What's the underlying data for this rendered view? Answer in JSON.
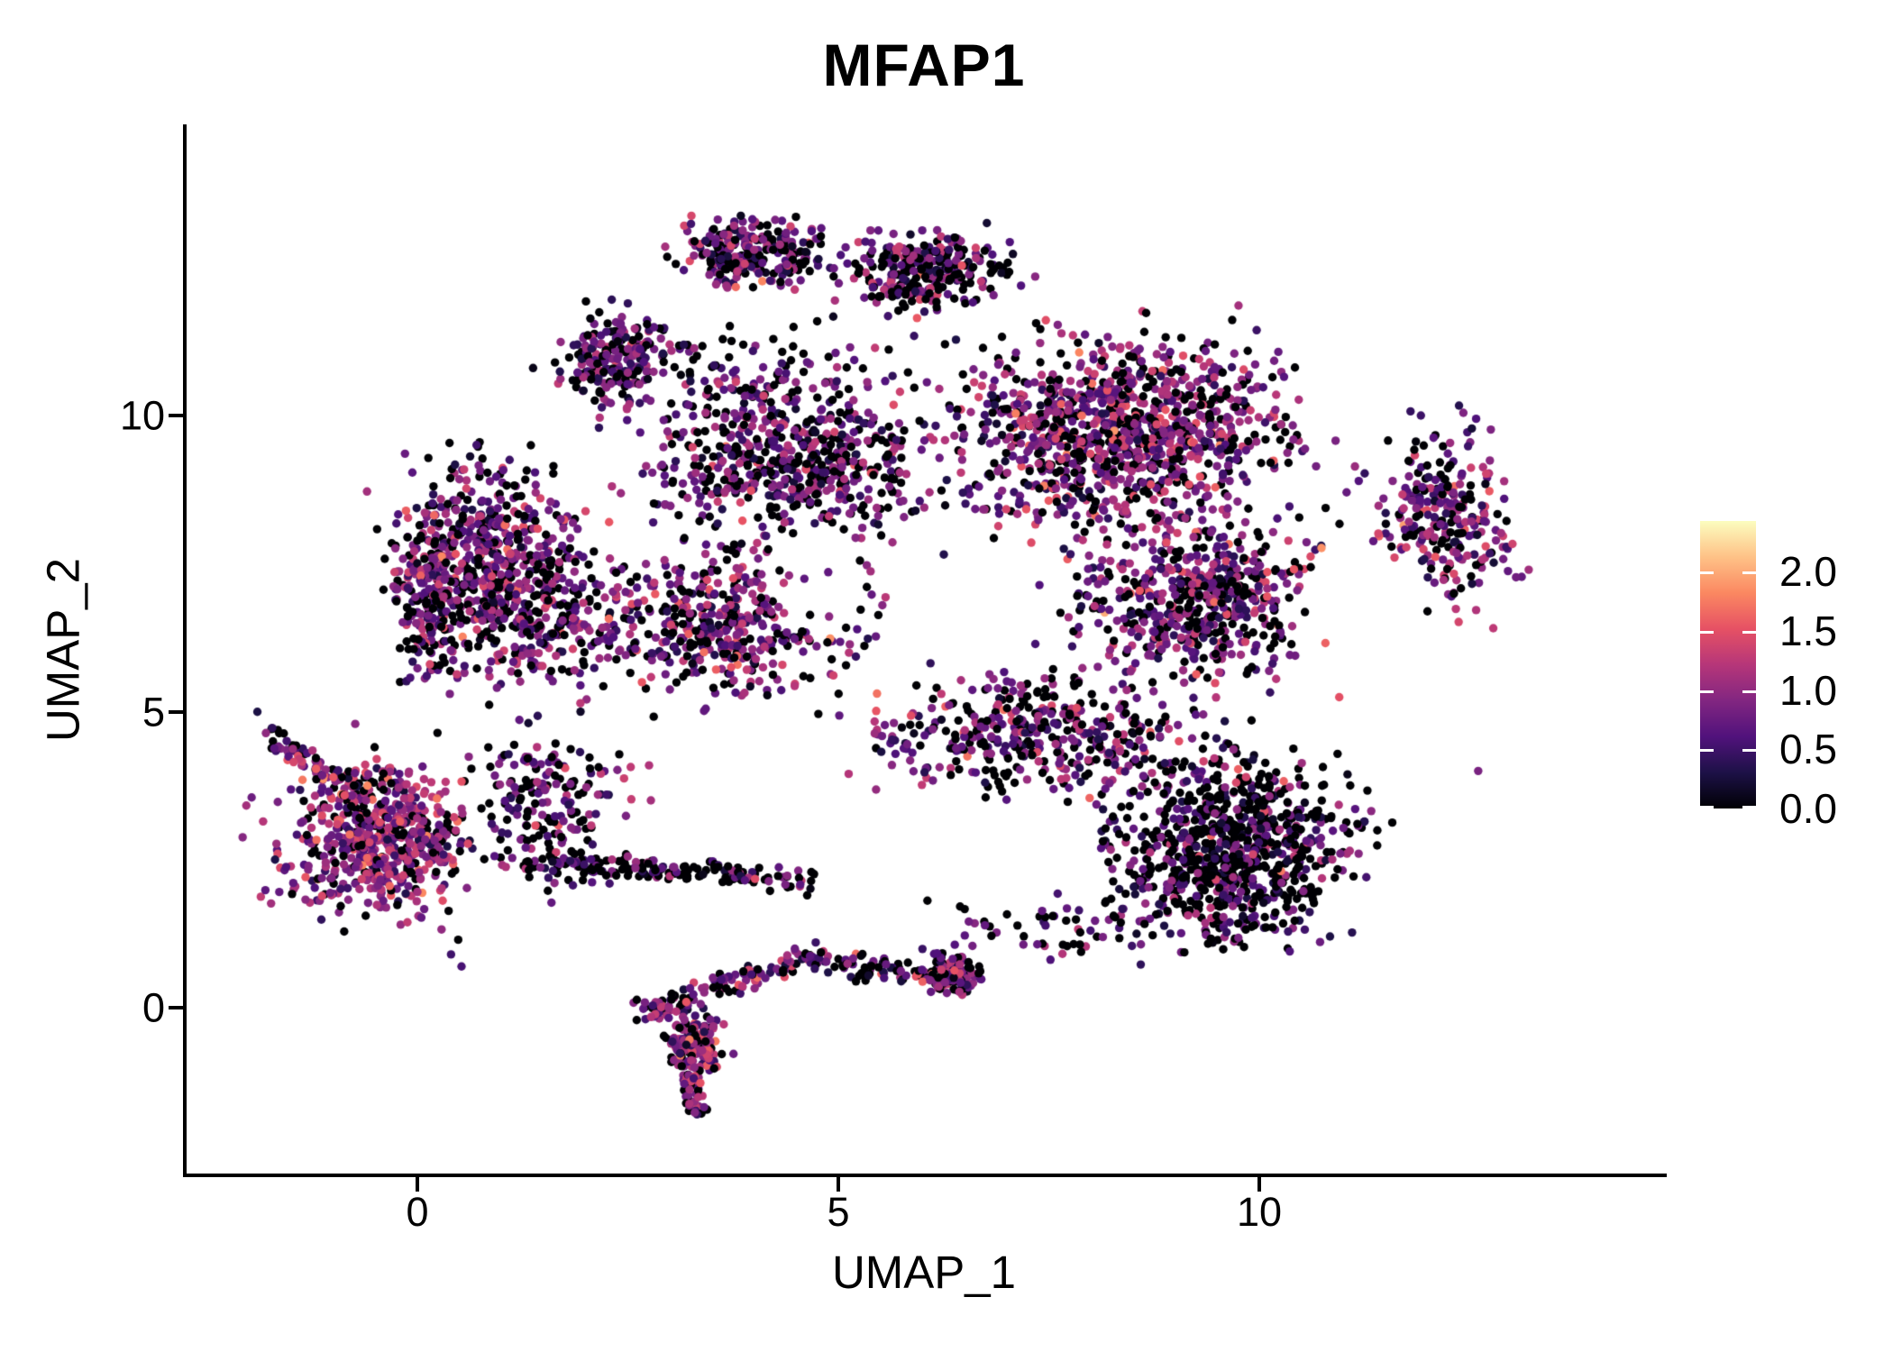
{
  "title": "MFAP1",
  "x_axis": {
    "label": "UMAP_1",
    "ticks": [
      0,
      5,
      10
    ]
  },
  "y_axis": {
    "label": "UMAP_2",
    "ticks": [
      0,
      5,
      10
    ]
  },
  "legend": {
    "domain": [
      0,
      2.43
    ],
    "ticks": [
      {
        "value": 2.0,
        "label": "2.0"
      },
      {
        "value": 1.5,
        "label": "1.5"
      },
      {
        "value": 1.0,
        "label": "1.0"
      },
      {
        "value": 0.5,
        "label": "0.5"
      },
      {
        "value": 0.0,
        "label": "0.0"
      }
    ],
    "colormap": "magma",
    "colormap_stops": [
      [
        0.0,
        "#000004"
      ],
      [
        0.125,
        "#1d1147"
      ],
      [
        0.25,
        "#51127c"
      ],
      [
        0.375,
        "#822681"
      ],
      [
        0.5,
        "#b63679"
      ],
      [
        0.625,
        "#e65164"
      ],
      [
        0.75,
        "#fb8861"
      ],
      [
        0.875,
        "#fec287"
      ],
      [
        1.0,
        "#fcfdbf"
      ]
    ]
  },
  "chart_data": {
    "type": "scatter",
    "title": "MFAP1",
    "xlabel": "UMAP_1",
    "ylabel": "UMAP_2",
    "xlim": [
      -2.8,
      14.8
    ],
    "ylim": [
      -2.8,
      14.9
    ],
    "grid": false,
    "legend_position": "right",
    "color_scale": {
      "name": "magma",
      "domain": [
        0,
        2.43
      ],
      "legend_ticks": [
        0,
        0.5,
        1.0,
        1.5,
        2.0
      ]
    },
    "point_radius_px": 4.7,
    "seed": 1337,
    "n_points_approx": 7800,
    "blobs": [
      {
        "name": "cap-left",
        "cx": 2.43,
        "cy": 10.94,
        "rx": 0.96,
        "ry": 1.07,
        "rot": -35,
        "n": 220,
        "black": 0.34,
        "vMean": 0.8,
        "vSd": 0.5
      },
      {
        "name": "cap-top",
        "cx": 4.04,
        "cy": 12.77,
        "rx": 1.28,
        "ry": 0.84,
        "rot": -8,
        "n": 260,
        "black": 0.34,
        "vMean": 0.8,
        "vSd": 0.5
      },
      {
        "name": "cap-right",
        "cx": 6.07,
        "cy": 12.47,
        "rx": 1.39,
        "ry": 0.91,
        "rot": 6,
        "n": 280,
        "black": 0.36,
        "vMean": 0.8,
        "vSd": 0.5
      },
      {
        "name": "cap-scatter",
        "cx": 4.14,
        "cy": 10.49,
        "rx": 2.25,
        "ry": 1.52,
        "rot": 0,
        "n": 130,
        "black": 0.38,
        "vMean": 0.75,
        "vSd": 0.5
      },
      {
        "name": "main-left",
        "cx": 1.04,
        "cy": 7.29,
        "rx": 1.61,
        "ry": 2.67,
        "rot": 15,
        "n": 700,
        "black": 0.3,
        "vMean": 0.85,
        "vSd": 0.5
      },
      {
        "name": "main-left-edge",
        "cx": 0.13,
        "cy": 6.91,
        "rx": 0.59,
        "ry": 1.91,
        "rot": 0,
        "n": 190,
        "black": 0.28,
        "vMean": 0.9,
        "vSd": 0.5
      },
      {
        "name": "main-center-top",
        "cx": 4.46,
        "cy": 9.12,
        "rx": 2.41,
        "ry": 1.75,
        "rot": 0,
        "n": 550,
        "black": 0.33,
        "vMean": 0.8,
        "vSd": 0.5
      },
      {
        "name": "main-center",
        "cx": 3.61,
        "cy": 6.52,
        "rx": 2.52,
        "ry": 1.68,
        "rot": 5,
        "n": 520,
        "black": 0.33,
        "vMean": 0.85,
        "vSd": 0.5
      },
      {
        "name": "main-right-upper",
        "cx": 8.32,
        "cy": 9.73,
        "rx": 2.84,
        "ry": 2.29,
        "rot": 5,
        "n": 1100,
        "black": 0.3,
        "vMean": 0.9,
        "vSd": 0.5
      },
      {
        "name": "main-right-mid",
        "cx": 9.28,
        "cy": 6.91,
        "rx": 2.19,
        "ry": 1.91,
        "rot": 0,
        "n": 580,
        "black": 0.32,
        "vMean": 0.85,
        "vSd": 0.5
      },
      {
        "name": "main-far-right",
        "cx": 12.17,
        "cy": 8.28,
        "rx": 1.23,
        "ry": 2.21,
        "rot": 0,
        "n": 290,
        "black": 0.3,
        "vMean": 0.85,
        "vSd": 0.5
      },
      {
        "name": "main-right-lower",
        "cx": 7.35,
        "cy": 4.62,
        "rx": 2.84,
        "ry": 1.45,
        "rot": -3,
        "n": 440,
        "black": 0.38,
        "vMean": 0.8,
        "vSd": 0.5
      },
      {
        "name": "bottomright-lobe",
        "cx": 9.71,
        "cy": 2.71,
        "rx": 2.09,
        "ry": 2.13,
        "rot": -15,
        "n": 850,
        "black": 0.55,
        "vMean": 0.7,
        "vSd": 0.5
      },
      {
        "name": "main-left-lower",
        "cx": 1.57,
        "cy": 3.63,
        "rx": 1.39,
        "ry": 1.45,
        "rot": -20,
        "n": 150,
        "black": 0.35,
        "vMean": 0.8,
        "vSd": 0.5
      },
      {
        "name": "left-cluster",
        "cx": -0.46,
        "cy": 2.87,
        "rx": 1.45,
        "ry": 1.71,
        "rot": -12,
        "n": 520,
        "black": 0.2,
        "vMean": 1.0,
        "vSd": 0.5
      },
      {
        "name": "left-cluster-halo",
        "cx": -0.46,
        "cy": 2.87,
        "rx": 1.95,
        "ry": 2.2,
        "rot": -12,
        "n": 80,
        "black": 0.25,
        "vMean": 0.95,
        "vSd": 0.5
      },
      {
        "name": "bottom-knot",
        "cx": 3.29,
        "cy": -0.64,
        "rx": 0.51,
        "ry": 0.73,
        "rot": 0,
        "n": 170,
        "black": 0.25,
        "vMean": 0.95,
        "vSd": 0.5
      },
      {
        "name": "bottom-knot2",
        "cx": 6.34,
        "cy": 0.58,
        "rx": 0.45,
        "ry": 0.58,
        "rot": 0,
        "n": 90,
        "black": 0.3,
        "vMean": 0.9,
        "vSd": 0.5
      },
      {
        "name": "left-bridge",
        "cx": 1.47,
        "cy": 2.56,
        "rx": 0.9,
        "ry": 1.2,
        "rot": 0,
        "n": 45,
        "black": 0.4,
        "vMean": 0.8,
        "vSd": 0.5
      },
      {
        "name": "bottom-band",
        "cx": 7.68,
        "cy": 1.34,
        "rx": 2.46,
        "ry": 0.69,
        "rot": 0,
        "n": 70,
        "black": 0.45,
        "vMean": 0.8,
        "vSd": 0.5
      }
    ],
    "streaks": [
      {
        "name": "black-bridge",
        "x1": 1.25,
        "y1": 2.48,
        "x2": 4.73,
        "y2": 2.13,
        "w": 0.3,
        "n": 170,
        "black": 0.62,
        "vMean": 0.7,
        "vSd": 0.5
      },
      {
        "name": "left-tail",
        "x1": -1.8,
        "y1": 4.66,
        "x2": -0.7,
        "y2": 3.6,
        "w": 0.24,
        "n": 70,
        "black": 0.3,
        "vMean": 0.9,
        "vSd": 0.5
      },
      {
        "name": "bottom-desc",
        "x1": 3.21,
        "y1": -1.13,
        "x2": 3.35,
        "y2": -1.81,
        "w": 0.22,
        "n": 45,
        "black": 0.25,
        "vMean": 0.95,
        "vSd": 0.5
      },
      {
        "name": "bottom-chain1",
        "x1": 2.54,
        "y1": -0.14,
        "x2": 4.57,
        "y2": 0.84,
        "w": 0.3,
        "n": 115,
        "black": 0.3,
        "vMean": 0.85,
        "vSd": 0.5
      },
      {
        "name": "bottom-chain2",
        "x1": 4.57,
        "y1": 0.84,
        "x2": 6.73,
        "y2": 0.47,
        "w": 0.34,
        "n": 110,
        "black": 0.35,
        "vMean": 0.85,
        "vSd": 0.5
      }
    ],
    "holes": [
      {
        "x": 11.31,
        "y": 6.52,
        "rx": 0.92,
        "ry": 1.28
      },
      {
        "x": 4.73,
        "y": 7.21,
        "rx": 0.62,
        "ry": 0.88
      }
    ],
    "outliers": [
      [
        7.17,
        12.2
      ],
      [
        13.2,
        7.4
      ],
      [
        0.4,
        0.9
      ],
      [
        5.9,
        11.35
      ],
      [
        2.5,
        11.9
      ],
      [
        12.6,
        4.0
      ],
      [
        -1.9,
        5.0
      ]
    ]
  }
}
